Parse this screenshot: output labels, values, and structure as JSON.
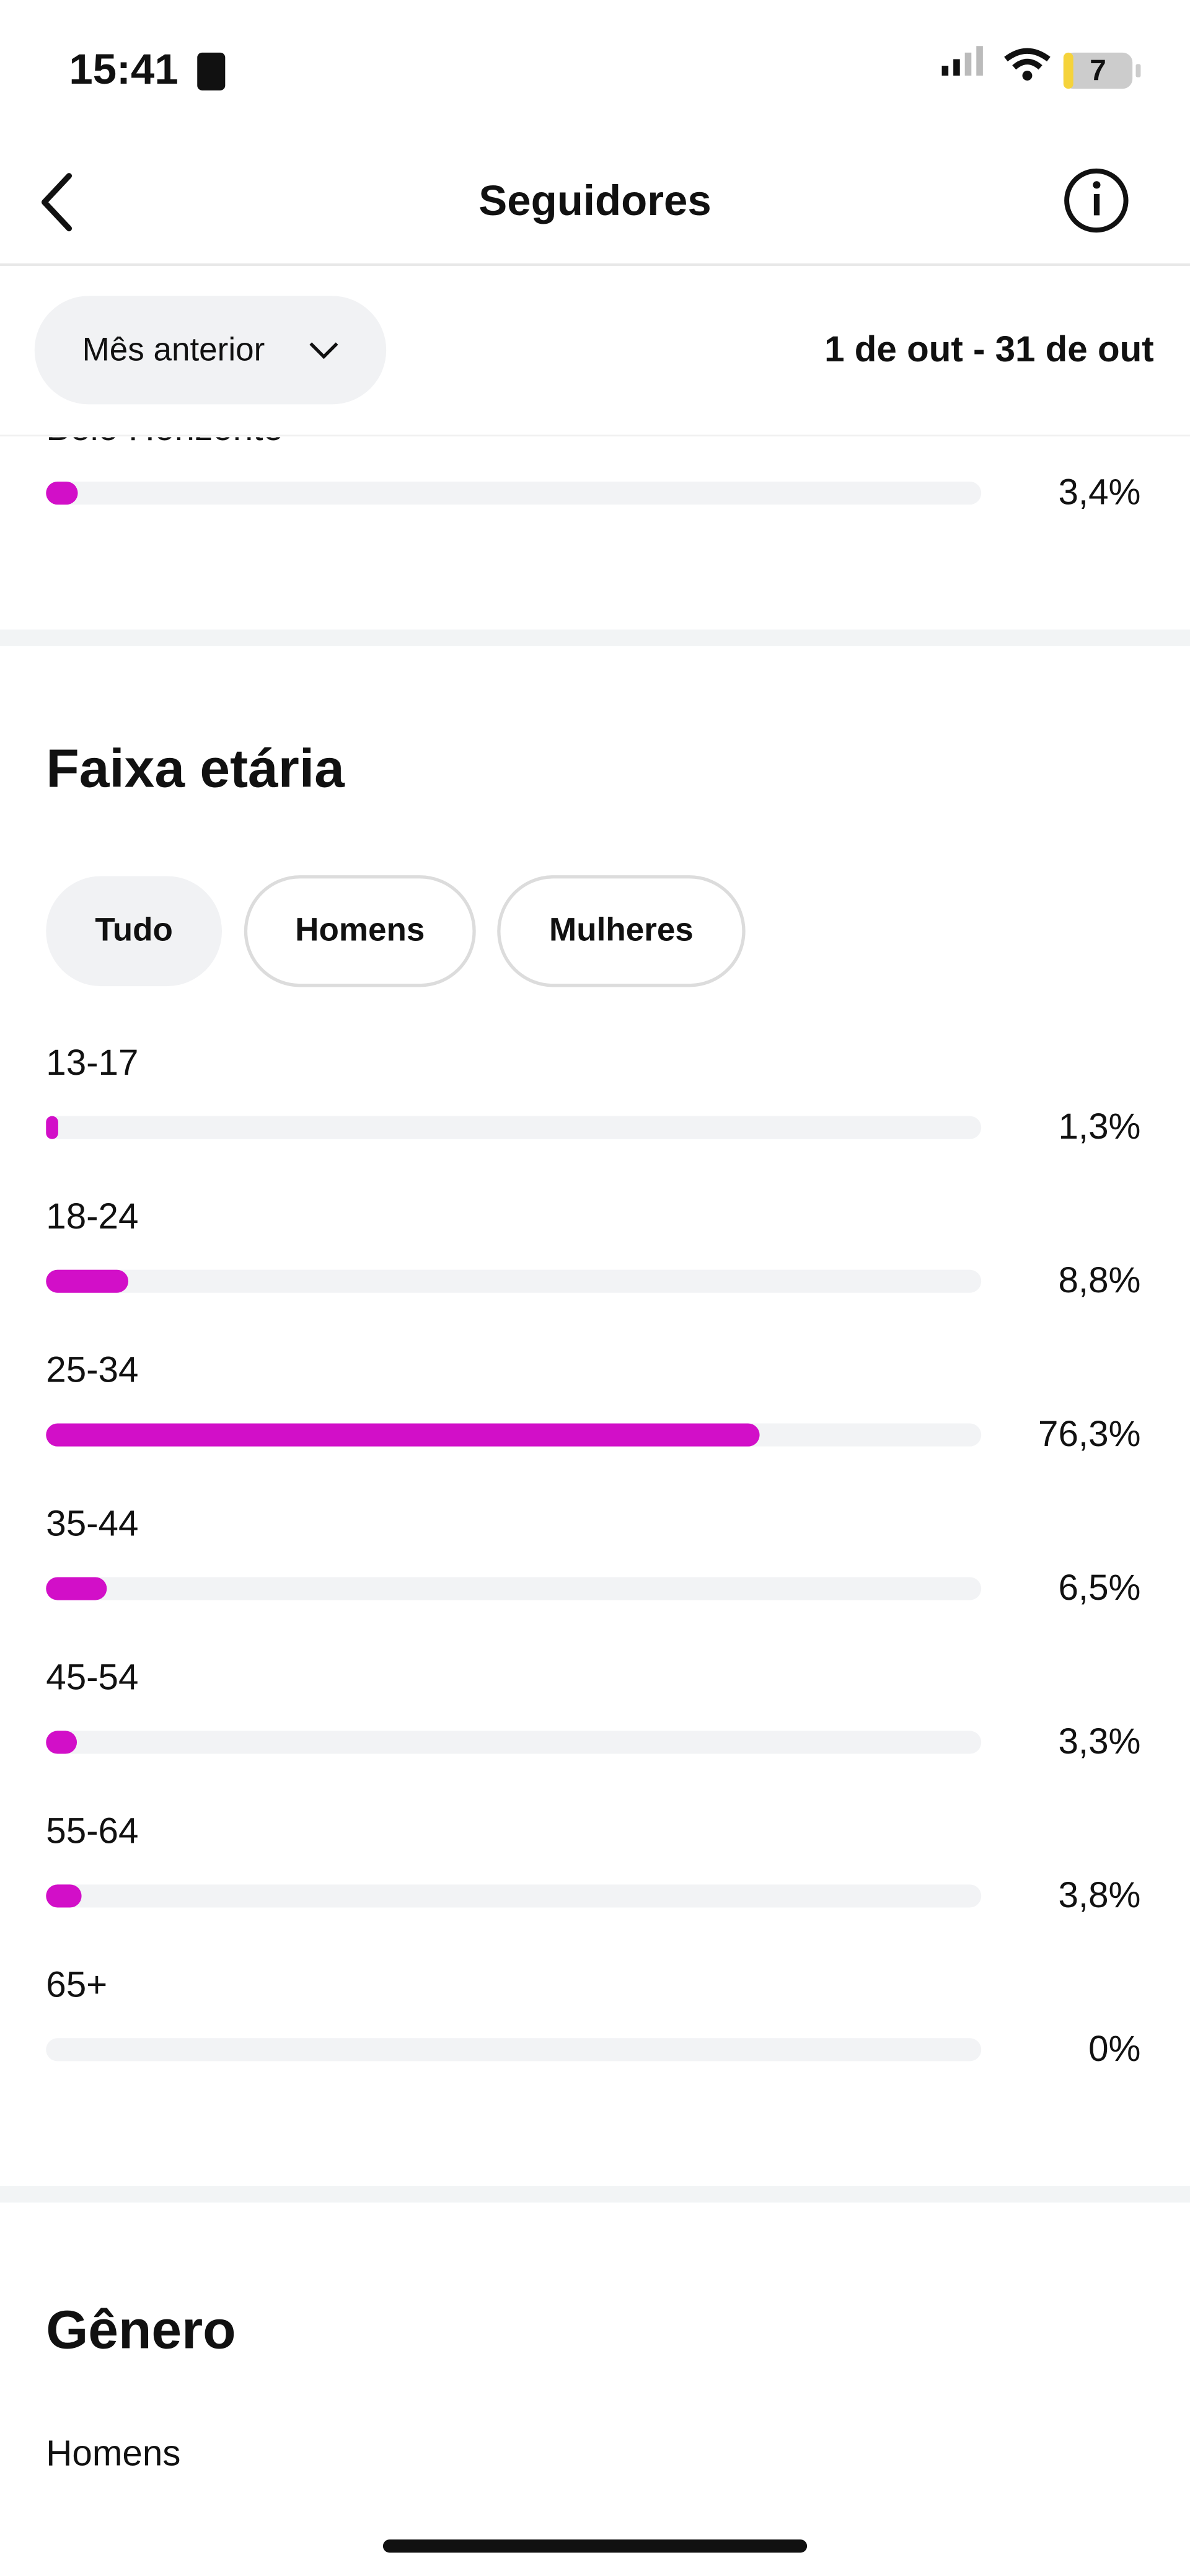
{
  "status_bar": {
    "time": "15:41",
    "battery": "7"
  },
  "header": {
    "title": "Seguidores"
  },
  "filter": {
    "period": "Mês anterior",
    "date_range": "1 de out - 31 de out"
  },
  "cities": [
    {
      "label": "Belo Horizonte",
      "value": 3.4,
      "value_label": "3,4%"
    }
  ],
  "age_section": {
    "title": "Faixa etária",
    "tabs": [
      "Tudo",
      "Homens",
      "Mulheres"
    ],
    "rows": [
      {
        "label": "13-17",
        "value": 1.3,
        "value_label": "1,3%"
      },
      {
        "label": "18-24",
        "value": 8.8,
        "value_label": "8,8%"
      },
      {
        "label": "25-34",
        "value": 76.3,
        "value_label": "76,3%"
      },
      {
        "label": "35-44",
        "value": 6.5,
        "value_label": "6,5%"
      },
      {
        "label": "45-54",
        "value": 3.3,
        "value_label": "3,3%"
      },
      {
        "label": "55-64",
        "value": 3.8,
        "value_label": "3,8%"
      },
      {
        "label": "65+",
        "value": 0,
        "value_label": "0%"
      }
    ],
    "bar_color": "#d20fc8"
  },
  "gender_section": {
    "title": "Gênero",
    "first_label": "Homens"
  }
}
